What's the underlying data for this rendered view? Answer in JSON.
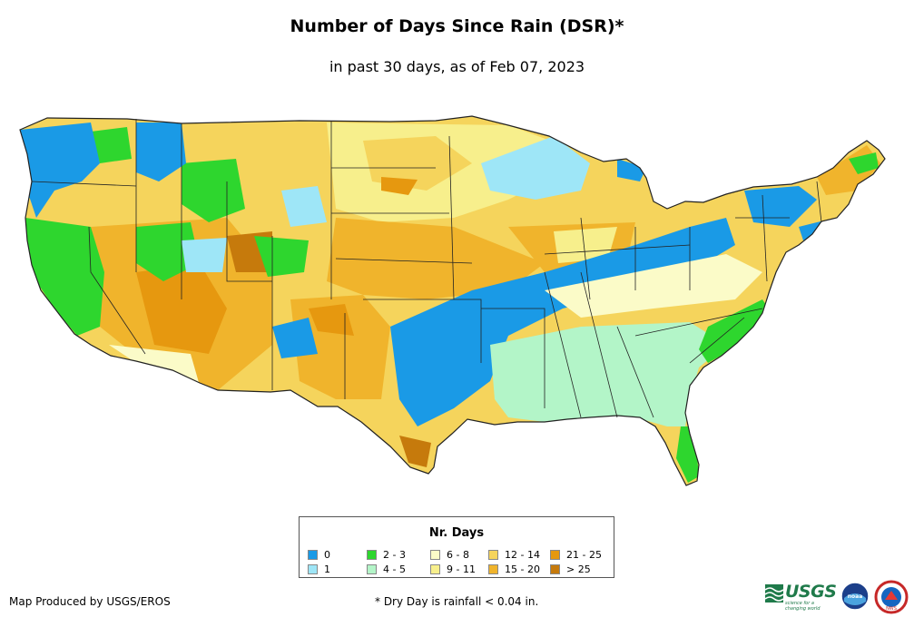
{
  "title": "Number of Days Since Rain (DSR)*",
  "subtitle": "in past 30 days, as of Feb 07, 2023",
  "legend": {
    "title": "Nr. Days",
    "items": [
      {
        "label": "0",
        "color": "#1a9ae6"
      },
      {
        "label": "1",
        "color": "#9ee6f7"
      },
      {
        "label": "2 - 3",
        "color": "#2ed62e"
      },
      {
        "label": "4 - 5",
        "color": "#b3f5c8"
      },
      {
        "label": "6 - 8",
        "color": "#fbfbc8"
      },
      {
        "label": "9 - 11",
        "color": "#f7ef8c"
      },
      {
        "label": "12 - 14",
        "color": "#f5d45c"
      },
      {
        "label": "15 - 20",
        "color": "#f0b42c"
      },
      {
        "label": "21 - 25",
        "color": "#e6980f"
      },
      {
        "label": "> 25",
        "color": "#c67a0c"
      }
    ]
  },
  "footer": {
    "producer": "Map Produced by USGS/EROS",
    "note": "* Dry Day is rainfall < 0.04 in."
  },
  "logos": {
    "usgs_word": "USGS",
    "usgs_tagline": "science for a changing world",
    "noaa_text": "noaa",
    "nws_text": "NWS"
  }
}
